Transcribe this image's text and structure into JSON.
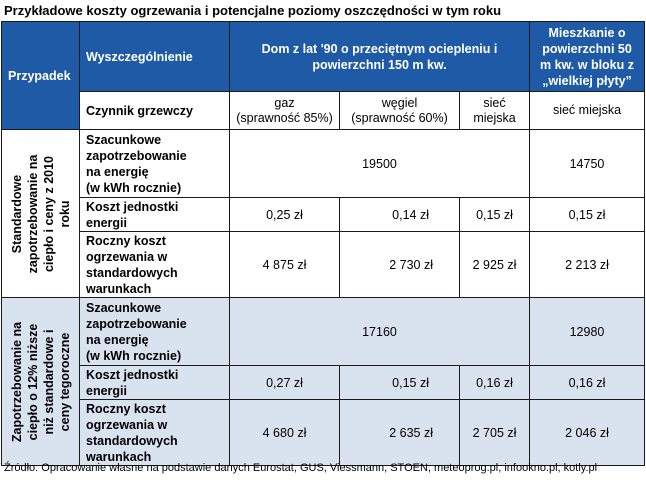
{
  "title": "Przykładowe koszty ogrzewania i potencjalne poziomy oszczędności w tym roku",
  "header": {
    "przypadek": "Przypadek",
    "wyszczegolnienie": "Wyszczególnienie",
    "dom_line1": "Dom z lat '90 o przeciętnym ociepleniu i",
    "dom_line2": "powierzchni 150 m kw.",
    "mieszkanie_line1": "Mieszkanie o",
    "mieszkanie_line2": "powierzchni 50",
    "mieszkanie_line3": "m kw. w bloku z",
    "mieszkanie_line4": "„wielkiej płyty”"
  },
  "factors": {
    "label": "Czynnik grzewczy",
    "gaz_line1": "gaz",
    "gaz_line2": "(sprawność 85%)",
    "wegiel_line1": "węgiel",
    "wegiel_line2": "(sprawność 60%)",
    "siec_line1": "sieć",
    "siec_line2": "miejska",
    "siec_miejska": "sieć miejska"
  },
  "row_labels": {
    "zapotrzebowanie_l1": "Szacunkowe",
    "zapotrzebowanie_l2": "zapotrzebowanie",
    "zapotrzebowanie_l3": "na energię",
    "zapotrzebowanie_l4": "(w kWh rocznie)",
    "koszt_l1": "Koszt jednostki",
    "koszt_l2": "energii",
    "roczny_l1": "Roczny koszt",
    "roczny_l2": "ogrzewania w",
    "roczny_l3": "standardowych",
    "roczny_l4": "warunkach"
  },
  "group1": {
    "label_l1": "Standardowe",
    "label_l2": "zapotrzebowanie na",
    "label_l3": "ciepło i ceny z 2010",
    "label_l4": "roku",
    "energy_dom": "19500",
    "energy_mieszkanie": "14750",
    "unit_cost": [
      "0,25 zł",
      "0,14 zł",
      "0,15 zł",
      "0,15 zł"
    ],
    "annual_cost": [
      "4 875 zł",
      "2 730 zł",
      "2 925 zł",
      "2 213 zł"
    ]
  },
  "group2": {
    "label_l1": "Zapotrzebowanie na",
    "label_l2": "ciepło o 12% niższe",
    "label_l3": "niż standardowe i",
    "label_l4": "ceny tegoroczne",
    "energy_dom": "17160",
    "energy_mieszkanie": "12980",
    "unit_cost": [
      "0,27 zł",
      "0,15 zł",
      "0,16 zł",
      "0,16 zł"
    ],
    "annual_cost": [
      "4 680 zł",
      "2 635 zł",
      "2 705 zł",
      "2 046 zł"
    ]
  },
  "source": "Źródło: Opracowanie własne na podstawie danych Eurostat, GUS, Viessmann, STOEN, meteoprog.pl, infookno.pl, kotly.pl",
  "colors": {
    "header_bg": "#1f5aa6",
    "group2_bg": "#d9e2ef"
  }
}
